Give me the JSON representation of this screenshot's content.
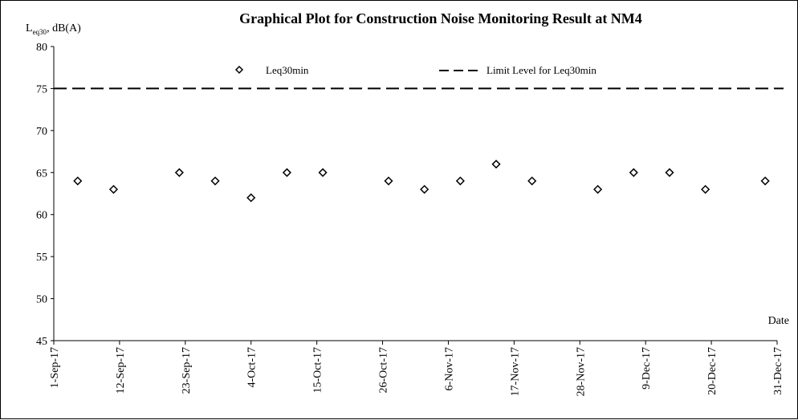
{
  "chart_data": {
    "type": "scatter",
    "title": "Graphical Plot for Construction Noise Monitoring Result at NM4",
    "ylabel": {
      "main": "L",
      "sub": "eq30",
      "rest": ", dB(A)"
    },
    "xlabel": "Date",
    "ylim": [
      45,
      80
    ],
    "yticks": [
      45,
      50,
      55,
      60,
      65,
      70,
      75,
      80
    ],
    "xlim": [
      "2017-09-01",
      "2017-12-31"
    ],
    "xticks": [
      {
        "date": "2017-09-01",
        "label": "1-Sep-17"
      },
      {
        "date": "2017-09-12",
        "label": "12-Sep-17"
      },
      {
        "date": "2017-09-23",
        "label": "23-Sep-17"
      },
      {
        "date": "2017-10-04",
        "label": "4-Oct-17"
      },
      {
        "date": "2017-10-15",
        "label": "15-Oct-17"
      },
      {
        "date": "2017-10-26",
        "label": "26-Oct-17"
      },
      {
        "date": "2017-11-06",
        "label": "6-Nov-17"
      },
      {
        "date": "2017-11-17",
        "label": "17-Nov-17"
      },
      {
        "date": "2017-11-28",
        "label": "28-Nov-17"
      },
      {
        "date": "2017-12-09",
        "label": "9-Dec-17"
      },
      {
        "date": "2017-12-20",
        "label": "20-Dec-17"
      },
      {
        "date": "2017-12-31",
        "label": "31-Dec-17"
      }
    ],
    "series": [
      {
        "name": "Leq30min",
        "marker": "diamond",
        "points": [
          {
            "x": "2017-09-05",
            "y": 64
          },
          {
            "x": "2017-09-11",
            "y": 63
          },
          {
            "x": "2017-09-22",
            "y": 65
          },
          {
            "x": "2017-09-28",
            "y": 64
          },
          {
            "x": "2017-10-04",
            "y": 62
          },
          {
            "x": "2017-10-10",
            "y": 65
          },
          {
            "x": "2017-10-16",
            "y": 65
          },
          {
            "x": "2017-10-27",
            "y": 64
          },
          {
            "x": "2017-11-02",
            "y": 63
          },
          {
            "x": "2017-11-08",
            "y": 64
          },
          {
            "x": "2017-11-14",
            "y": 66
          },
          {
            "x": "2017-11-20",
            "y": 64
          },
          {
            "x": "2017-12-01",
            "y": 63
          },
          {
            "x": "2017-12-07",
            "y": 65
          },
          {
            "x": "2017-12-13",
            "y": 65
          },
          {
            "x": "2017-12-19",
            "y": 63
          },
          {
            "x": "2017-12-29",
            "y": 64
          }
        ]
      }
    ],
    "limit": {
      "name": "Limit Level for Leq30min",
      "y": 75,
      "style": "dashed"
    },
    "legend_position": "top",
    "grid": false,
    "colors": {
      "marker": "#000000",
      "axis": "#000000",
      "limit": "#000000"
    }
  }
}
